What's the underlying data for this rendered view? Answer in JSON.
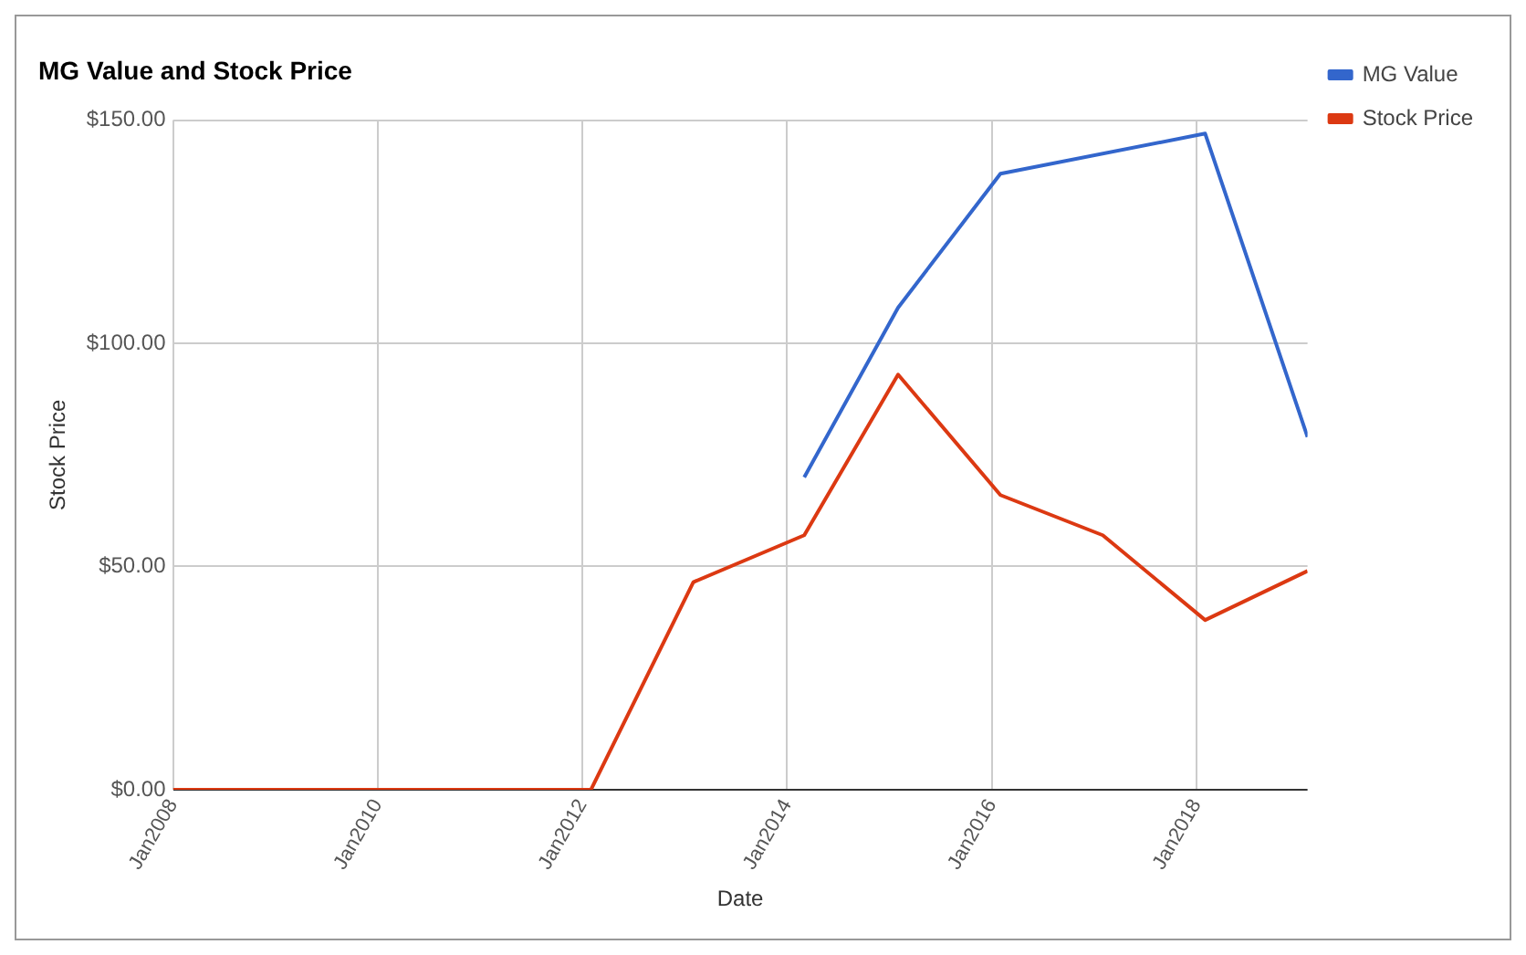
{
  "chart_data": {
    "type": "line",
    "title": "MG Value and Stock Price",
    "xlabel": "Date",
    "ylabel": "Stock Price",
    "xlim": [
      "2008-01",
      "2019-02"
    ],
    "xticks": [
      {
        "value": "2008-01",
        "label": "Jan2008"
      },
      {
        "value": "2010-01",
        "label": "Jan2010"
      },
      {
        "value": "2012-01",
        "label": "Jan2012"
      },
      {
        "value": "2014-01",
        "label": "Jan2014"
      },
      {
        "value": "2016-01",
        "label": "Jan2016"
      },
      {
        "value": "2018-01",
        "label": "Jan2018"
      }
    ],
    "ylim": [
      0,
      150
    ],
    "yticks": [
      {
        "value": 0,
        "label": "$0.00"
      },
      {
        "value": 50,
        "label": "$50.00"
      },
      {
        "value": 100,
        "label": "$100.00"
      },
      {
        "value": 150,
        "label": "$150.00"
      }
    ],
    "series": [
      {
        "name": "MG Value",
        "color": "#3366cc",
        "x": [
          "2014-03",
          "2015-02",
          "2016-02",
          "2018-02",
          "2019-02"
        ],
        "values": [
          70,
          108,
          138,
          147,
          79
        ]
      },
      {
        "name": "Stock Price",
        "color": "#dc3912",
        "x": [
          "2008-01",
          "2009-02",
          "2010-02",
          "2011-02",
          "2012-02",
          "2013-02",
          "2014-03",
          "2015-02",
          "2016-02",
          "2017-02",
          "2018-02",
          "2019-02"
        ],
        "values": [
          0,
          0,
          0,
          0,
          0,
          46.5,
          57,
          93,
          66,
          57,
          38,
          49
        ]
      }
    ],
    "grid": true,
    "legend": "top right",
    "marker": "none",
    "line_style": "solid"
  }
}
